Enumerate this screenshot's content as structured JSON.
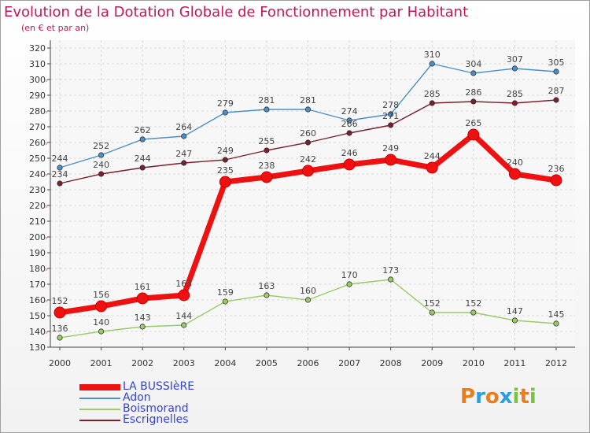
{
  "title": "Evolution de la Dotation Globale de Fonctionnement par Habitant",
  "subtitle": "(en € et par an)",
  "logo": {
    "text": "Proxiti",
    "letters": [
      "P",
      "r",
      "o",
      "x",
      "i",
      "t",
      "i"
    ],
    "colors": [
      "#e67e22",
      "#2e9de0",
      "#e67e22",
      "#2e9de0",
      "#7cc242",
      "#e67e22",
      "#7cc242"
    ]
  },
  "chart_data": {
    "type": "line",
    "title": "Evolution de la Dotation Globale de Fonctionnement par Habitant",
    "subtitle": "(en € et par an)",
    "xlabel": "",
    "ylabel": "",
    "ylim": [
      130,
      320
    ],
    "ytick_step": 10,
    "grid": true,
    "x": [
      "2000",
      "2001",
      "2002",
      "2003",
      "2004",
      "2005",
      "2006",
      "2007",
      "2008",
      "2009",
      "2010",
      "2011",
      "2012"
    ],
    "series": [
      {
        "name": "Adon",
        "color": "#4a90c8",
        "values": [
          244,
          252,
          262,
          264,
          279,
          281,
          281,
          274,
          278,
          310,
          304,
          307,
          305
        ]
      },
      {
        "name": "Escrignelles",
        "color": "#7a1f2b",
        "values": [
          234,
          240,
          244,
          247,
          249,
          255,
          260,
          266,
          271,
          285,
          286,
          285,
          287
        ]
      },
      {
        "name": "LA BUSSIèRE",
        "color": "#ee1111",
        "values": [
          152,
          156,
          161,
          163,
          235,
          238,
          242,
          246,
          249,
          244,
          265,
          240,
          236
        ]
      },
      {
        "name": "Boismorand",
        "color": "#99cc66",
        "values": [
          136,
          140,
          143,
          144,
          159,
          163,
          160,
          170,
          173,
          152,
          152,
          147,
          145
        ]
      }
    ],
    "legend": {
      "position": "bottom-left",
      "order": [
        "LA BUSSIèRE",
        "Adon",
        "Boismorand",
        "Escrignelles"
      ]
    }
  }
}
